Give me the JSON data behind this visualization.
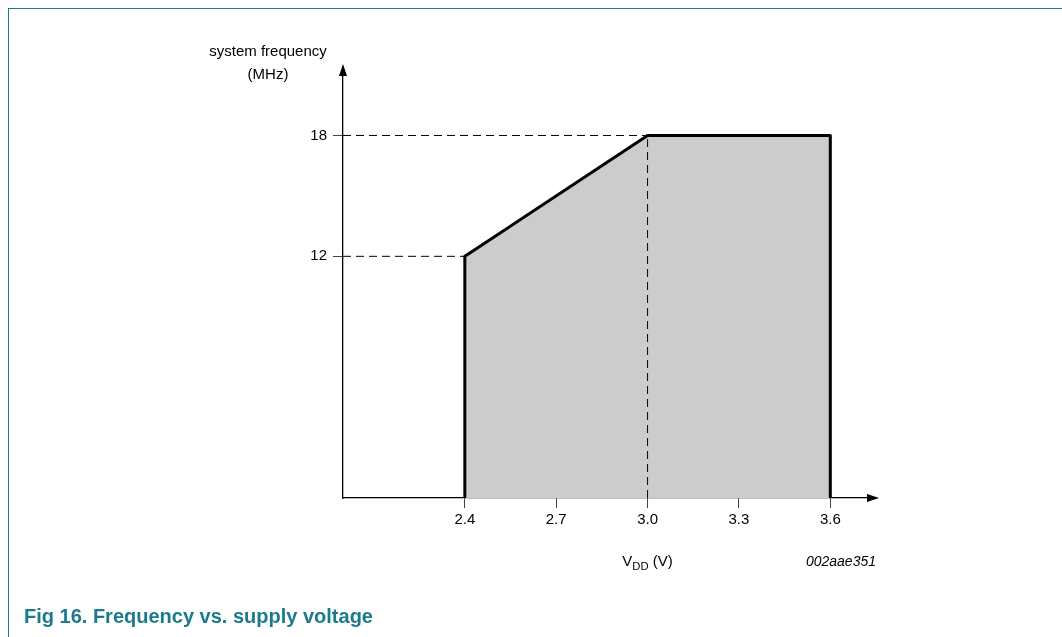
{
  "chart_data": {
    "type": "area",
    "title": "Fig 16. Frequency vs. supply voltage",
    "xlabel": "V$_{DD}$ (V)",
    "ylabel": "system frequency\n(MHz)",
    "annotations": [
      "002aae351"
    ],
    "x": [
      2.4,
      2.4,
      3.0,
      3.6,
      3.6
    ],
    "series": [
      {
        "color": "#cccccc",
        "values": [
          0,
          12,
          18,
          18,
          0
        ]
      }
    ],
    "xlim": [
      2.0,
      3.75
    ],
    "xticks": [
      2.4,
      2.7,
      {
        "value": 3.0,
        "label": "3.0"
      },
      3.3,
      3.6
    ],
    "ylim": [
      0,
      21.4
    ],
    "yticks": [
      12,
      18
    ],
    "ref_lines": [
      {
        "axis": "y",
        "value": 18,
        "line_style": "dashed"
      },
      {
        "axis": "y",
        "value": 12,
        "line_style": "dashed"
      },
      {
        "axis": "x",
        "value": 3.0,
        "line_style": "dashed"
      }
    ]
  }
}
